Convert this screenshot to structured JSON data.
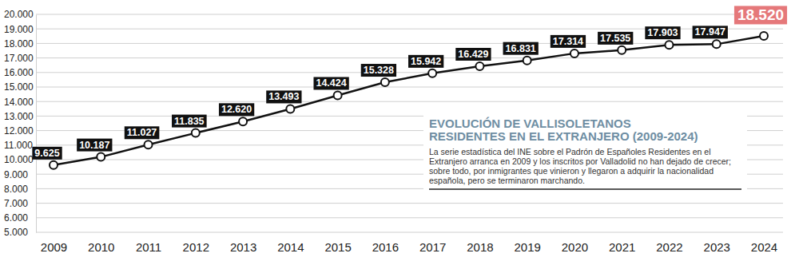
{
  "chart_data": {
    "type": "line",
    "title": "EVOLUCIÓN DE VALLISOLETANOS RESIDENTES EN EL EXTRANJERO (2009-2024)",
    "subtitle": "La serie estadística del INE sobre el Padrón de Españoles Residentes en el Extranjero arranca en 2009 y los inscritos por Valladolid no han dejado de crecer; sobre todo, por inmigrantes que vinieron y llegaron a adquirir la nacionalidad española, pero se terminaron marchando.",
    "categories": [
      "2009",
      "2010",
      "2011",
      "2012",
      "2013",
      "2014",
      "2015",
      "2016",
      "2017",
      "2018",
      "2019",
      "2020",
      "2021",
      "2022",
      "2023",
      "2024"
    ],
    "values": [
      9625,
      10187,
      11027,
      11835,
      12620,
      13493,
      14424,
      15328,
      15942,
      16429,
      16831,
      17314,
      17535,
      17903,
      17947,
      18520
    ],
    "value_labels": [
      "9.625",
      "10.187",
      "11.027",
      "11.835",
      "12.620",
      "13.493",
      "14.424",
      "15.328",
      "15.942",
      "16.429",
      "16.831",
      "17.314",
      "17.535",
      "17.903",
      "17.947",
      "18.520"
    ],
    "data_labels": true,
    "color": "#111111",
    "marker": "circle",
    "grid": true,
    "ylim": [
      5000,
      20000
    ],
    "yticks": [
      {
        "value": 5000,
        "label": "5.000"
      },
      {
        "value": 6000,
        "label": "6.000"
      },
      {
        "value": 7000,
        "label": "7.000"
      },
      {
        "value": 8000,
        "label": "8.000"
      },
      {
        "value": 9000,
        "label": "9.000"
      },
      {
        "value": 10000,
        "label": "10.000"
      },
      {
        "value": 11000,
        "label": "11.000"
      },
      {
        "value": 12000,
        "label": "12.000"
      },
      {
        "value": 13000,
        "label": "13.000"
      },
      {
        "value": 14000,
        "label": "14.000"
      },
      {
        "value": 15000,
        "label": "15.000"
      },
      {
        "value": 16000,
        "label": "16.000"
      },
      {
        "value": 17000,
        "label": "17.000"
      },
      {
        "value": 18000,
        "label": "18.000"
      },
      {
        "value": 19000,
        "label": "19.000"
      },
      {
        "value": 20000,
        "label": "20.000"
      }
    ]
  }
}
